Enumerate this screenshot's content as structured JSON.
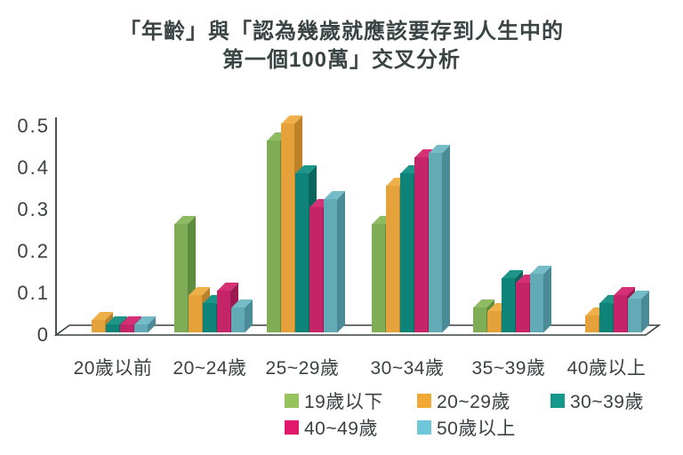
{
  "title": {
    "line1": "「年齡」與「認為幾歲就應該要存到人生中的",
    "line2": "第一個100萬」交叉分析"
  },
  "colors": {
    "background": "#ffffff",
    "axis": "#3a4242",
    "text": "#3a4242"
  },
  "chart_data": {
    "type": "bar",
    "variant": "3d-column",
    "title": "「年齡」與「認為幾歲就應該要存到人生中的第一個100萬」交叉分析",
    "xlabel": "",
    "ylabel": "",
    "ylim": [
      0,
      0.5
    ],
    "grid": false,
    "legend_position": "bottom",
    "y_ticks": [
      "0.5",
      "0.4",
      "0.3",
      "0.2",
      "0.1",
      "0"
    ],
    "categories": [
      "20歲以前",
      "20~24歲",
      "25~29歲",
      "30~34歲",
      "35~39歲",
      "40歲以上"
    ],
    "series": [
      {
        "name": "19歲以下",
        "color": "#7FAD56",
        "top": "#8FBC63",
        "side": "#5E8C3E",
        "swatch": "#97C35E",
        "values": [
          0,
          0.26,
          0.46,
          0.26,
          0.06,
          0
        ]
      },
      {
        "name": "20~29歲",
        "color": "#E5A23A",
        "top": "#EFB04A",
        "side": "#BD8128",
        "swatch": "#F0A935",
        "values": [
          0.03,
          0.09,
          0.5,
          0.35,
          0.05,
          0.04
        ]
      },
      {
        "name": "30~39歲",
        "color": "#0E8478",
        "top": "#1E9589",
        "side": "#0A655C",
        "swatch": "#14998C",
        "values": [
          0.02,
          0.07,
          0.38,
          0.38,
          0.13,
          0.07
        ]
      },
      {
        "name": "40~49歲",
        "color": "#C52568",
        "top": "#D63077",
        "side": "#9C1A50",
        "swatch": "#E0196B",
        "values": [
          0.02,
          0.1,
          0.3,
          0.42,
          0.12,
          0.09
        ]
      },
      {
        "name": "50歲以上",
        "color": "#61AAB6",
        "top": "#73BCC8",
        "side": "#4A8B97",
        "swatch": "#6FC6DB",
        "values": [
          0.02,
          0.06,
          0.32,
          0.43,
          0.14,
          0.08
        ]
      }
    ],
    "legend_rows": [
      [
        0,
        1,
        2
      ],
      [
        3,
        4
      ]
    ]
  }
}
